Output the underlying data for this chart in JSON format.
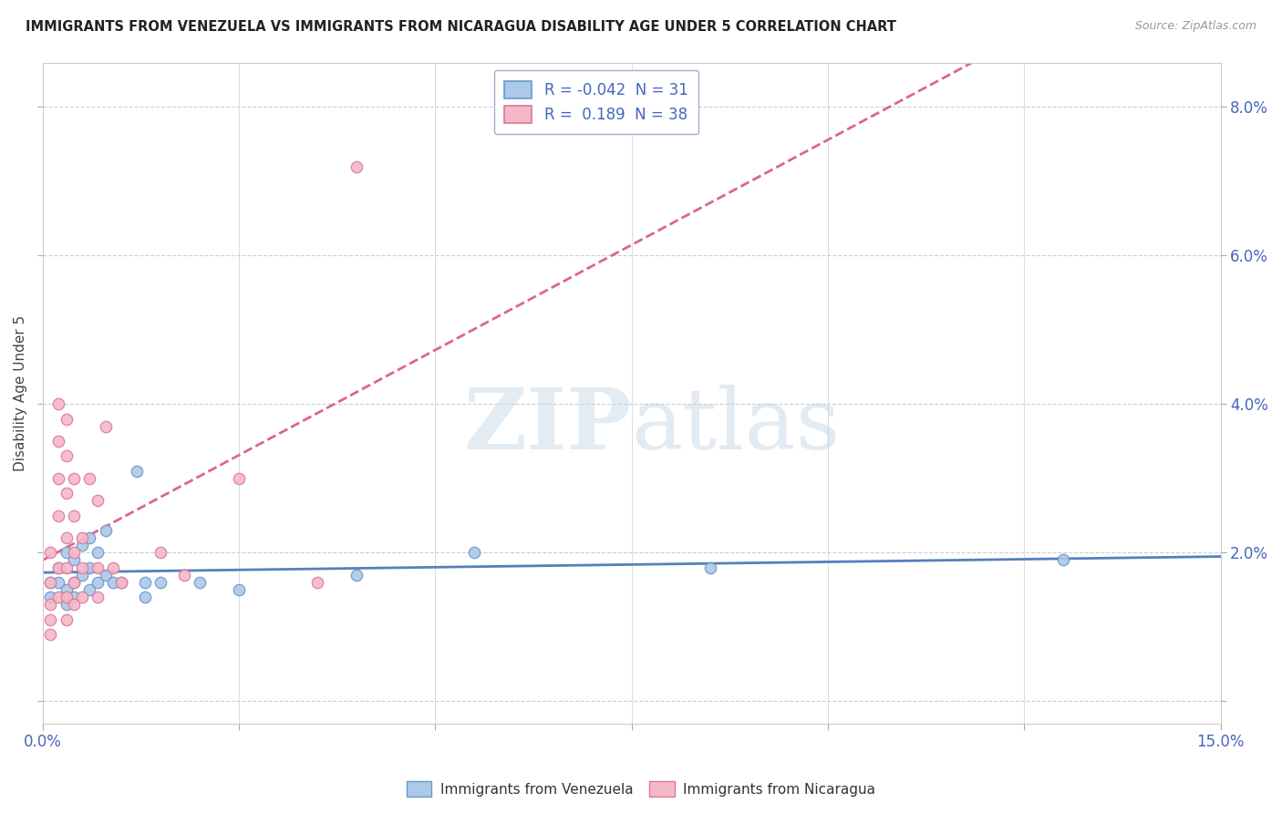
{
  "title": "IMMIGRANTS FROM VENEZUELA VS IMMIGRANTS FROM NICARAGUA DISABILITY AGE UNDER 5 CORRELATION CHART",
  "source": "Source: ZipAtlas.com",
  "ylabel": "Disability Age Under 5",
  "xlim": [
    0.0,
    0.15
  ],
  "ylim": [
    -0.003,
    0.086
  ],
  "yticks": [
    0.0,
    0.02,
    0.04,
    0.06,
    0.08
  ],
  "ytick_labels": [
    "",
    "2.0%",
    "4.0%",
    "6.0%",
    "8.0%"
  ],
  "xticks": [
    0.0,
    0.025,
    0.05,
    0.075,
    0.1,
    0.125,
    0.15
  ],
  "xtick_labels": [
    "0.0%",
    "",
    "",
    "",
    "",
    "",
    "15.0%"
  ],
  "blue_R": -0.042,
  "blue_N": 31,
  "pink_R": 0.189,
  "pink_N": 38,
  "blue_color": "#adc8e8",
  "pink_color": "#f5b8c8",
  "blue_edge_color": "#6699cc",
  "pink_edge_color": "#dd7799",
  "blue_line_color": "#5580bb",
  "pink_line_color": "#dd6688",
  "background_color": "#ffffff",
  "grid_color": "#ccccdd",
  "tick_label_color": "#4466bb",
  "blue_scatter": [
    [
      0.001,
      0.016
    ],
    [
      0.001,
      0.014
    ],
    [
      0.002,
      0.018
    ],
    [
      0.002,
      0.016
    ],
    [
      0.003,
      0.02
    ],
    [
      0.003,
      0.015
    ],
    [
      0.003,
      0.013
    ],
    [
      0.004,
      0.019
    ],
    [
      0.004,
      0.016
    ],
    [
      0.004,
      0.014
    ],
    [
      0.005,
      0.021
    ],
    [
      0.005,
      0.017
    ],
    [
      0.006,
      0.022
    ],
    [
      0.006,
      0.018
    ],
    [
      0.006,
      0.015
    ],
    [
      0.007,
      0.02
    ],
    [
      0.007,
      0.016
    ],
    [
      0.008,
      0.023
    ],
    [
      0.008,
      0.017
    ],
    [
      0.009,
      0.016
    ],
    [
      0.01,
      0.016
    ],
    [
      0.012,
      0.031
    ],
    [
      0.013,
      0.016
    ],
    [
      0.013,
      0.014
    ],
    [
      0.015,
      0.016
    ],
    [
      0.02,
      0.016
    ],
    [
      0.025,
      0.015
    ],
    [
      0.04,
      0.017
    ],
    [
      0.055,
      0.02
    ],
    [
      0.085,
      0.018
    ],
    [
      0.13,
      0.019
    ]
  ],
  "pink_scatter": [
    [
      0.001,
      0.02
    ],
    [
      0.001,
      0.016
    ],
    [
      0.001,
      0.013
    ],
    [
      0.001,
      0.011
    ],
    [
      0.001,
      0.009
    ],
    [
      0.002,
      0.04
    ],
    [
      0.002,
      0.035
    ],
    [
      0.002,
      0.03
    ],
    [
      0.002,
      0.025
    ],
    [
      0.002,
      0.018
    ],
    [
      0.002,
      0.014
    ],
    [
      0.003,
      0.038
    ],
    [
      0.003,
      0.033
    ],
    [
      0.003,
      0.028
    ],
    [
      0.003,
      0.022
    ],
    [
      0.003,
      0.018
    ],
    [
      0.003,
      0.014
    ],
    [
      0.003,
      0.011
    ],
    [
      0.004,
      0.03
    ],
    [
      0.004,
      0.025
    ],
    [
      0.004,
      0.02
    ],
    [
      0.004,
      0.016
    ],
    [
      0.004,
      0.013
    ],
    [
      0.005,
      0.022
    ],
    [
      0.005,
      0.018
    ],
    [
      0.005,
      0.014
    ],
    [
      0.006,
      0.03
    ],
    [
      0.007,
      0.027
    ],
    [
      0.007,
      0.018
    ],
    [
      0.007,
      0.014
    ],
    [
      0.008,
      0.037
    ],
    [
      0.009,
      0.018
    ],
    [
      0.01,
      0.016
    ],
    [
      0.015,
      0.02
    ],
    [
      0.018,
      0.017
    ],
    [
      0.025,
      0.03
    ],
    [
      0.035,
      0.016
    ],
    [
      0.04,
      0.072
    ]
  ]
}
